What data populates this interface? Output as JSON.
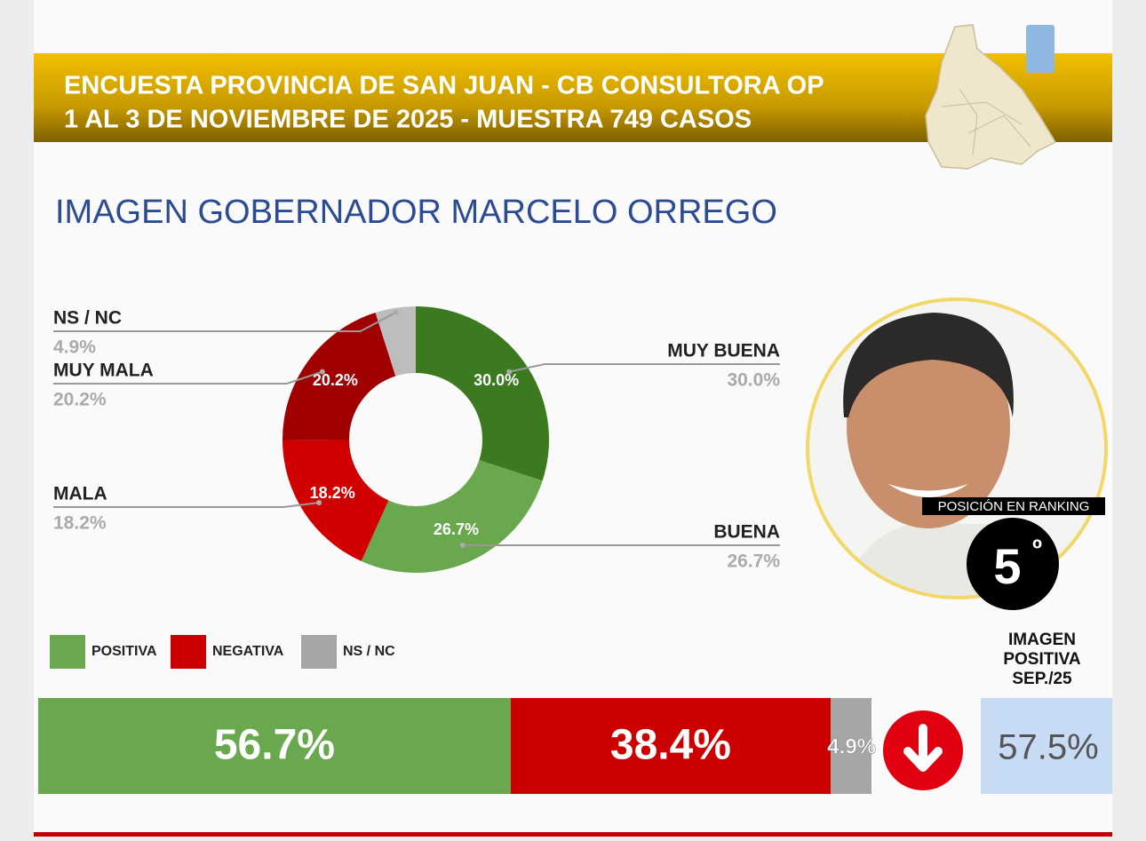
{
  "header": {
    "lines": [
      "ENCUESTA PROVINCIA DE SAN JUAN - CB CONSULTORA OP",
      "1 AL 3 DE NOVIEMBRE DE 2025 - MUESTRA 749 CASOS"
    ]
  },
  "chart_data": [
    {
      "type": "donut",
      "title": "IMAGEN GOBERNADOR  MARCELO ORREGO",
      "categories": [
        "MUY BUENA",
        "BUENA",
        "MALA",
        "MUY MALA",
        "NS / NC"
      ],
      "values": [
        30.0,
        26.7,
        18.2,
        20.2,
        4.9
      ],
      "value_labels": [
        "30.0%",
        "26.7%",
        "18.2%",
        "20.2%",
        "4.9%"
      ],
      "colors": [
        "#3b7a1f",
        "#6aa84f",
        "#d10000",
        "#a00000",
        "#bdbdbd"
      ]
    },
    {
      "type": "stacked-bar",
      "xlim": [
        0,
        100
      ],
      "series": [
        {
          "name": "POSITIVA",
          "color": "#6aa84f",
          "values": [
            56.7
          ],
          "value_labels": [
            "56.7%"
          ]
        },
        {
          "name": "NEGATIVA",
          "color": "#cc0000",
          "values": [
            38.4
          ],
          "value_labels": [
            "38.4%"
          ]
        },
        {
          "name": "NS / NC",
          "color": "#a6a6a6",
          "values": [
            4.9
          ],
          "value_labels": [
            "4.9%"
          ]
        }
      ]
    }
  ],
  "ranking": {
    "label": "POSICIÓN EN RANKING",
    "number": "5",
    "ordinal": "º"
  },
  "comparison": {
    "lines": [
      "IMAGEN",
      "POSITIVA",
      "SEP./25"
    ],
    "text": "57.5%"
  }
}
